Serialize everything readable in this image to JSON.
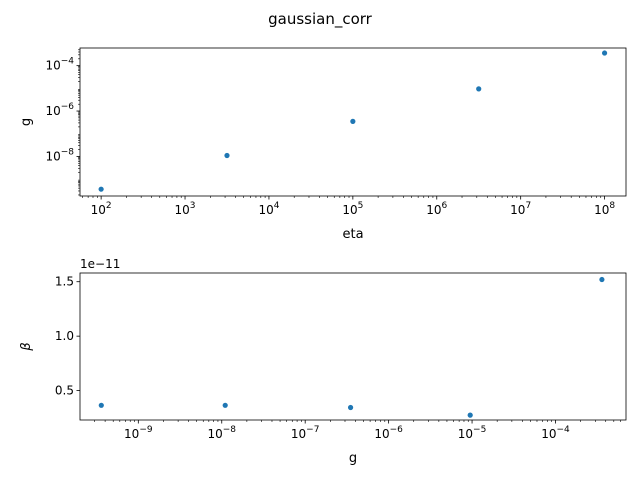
{
  "title": "gaussian_corr",
  "chart_data": [
    {
      "type": "scatter",
      "xlabel": "eta",
      "ylabel": "g",
      "xscale": "log",
      "yscale": "log",
      "xlim": [
        56,
        180000000
      ],
      "ylim": [
        1.8e-10,
        0.0006
      ],
      "xticks": [
        {
          "v": 100,
          "label": "10",
          "exp": "2"
        },
        {
          "v": 1000,
          "label": "10",
          "exp": "3"
        },
        {
          "v": 10000,
          "label": "10",
          "exp": "4"
        },
        {
          "v": 100000,
          "label": "10",
          "exp": "5"
        },
        {
          "v": 1000000,
          "label": "10",
          "exp": "6"
        },
        {
          "v": 10000000,
          "label": "10",
          "exp": "7"
        },
        {
          "v": 100000000,
          "label": "10",
          "exp": "8"
        }
      ],
      "yticks": [
        {
          "v": 1e-08,
          "label": "10",
          "exp": "−8"
        },
        {
          "v": 1e-06,
          "label": "10",
          "exp": "−6"
        },
        {
          "v": 0.0001,
          "label": "10",
          "exp": "−4"
        }
      ],
      "x": [
        100,
        3162,
        100000,
        3162000,
        100000000
      ],
      "y": [
        3.6e-10,
        1.1e-08,
        3.5e-07,
        9.5e-06,
        0.00036
      ],
      "color": "#1f77b4"
    },
    {
      "type": "scatter",
      "xlabel": "g",
      "ylabel": "β",
      "xscale": "log",
      "yscale": "linear",
      "offset_text": "1e−11",
      "xlim": [
        2e-10,
        0.0007
      ],
      "ylim": [
        2.3e-12,
        1.58e-11
      ],
      "xticks": [
        {
          "v": 1e-09,
          "label": "10",
          "exp": "−9"
        },
        {
          "v": 1e-08,
          "label": "10",
          "exp": "−8"
        },
        {
          "v": 1e-07,
          "label": "10",
          "exp": "−7"
        },
        {
          "v": 1e-06,
          "label": "10",
          "exp": "−6"
        },
        {
          "v": 1e-05,
          "label": "10",
          "exp": "−5"
        },
        {
          "v": 0.0001,
          "label": "10",
          "exp": "−4"
        }
      ],
      "yticks": [
        {
          "v": 5e-12,
          "label": "0.5"
        },
        {
          "v": 1e-11,
          "label": "1.0"
        },
        {
          "v": 1.5e-11,
          "label": "1.5"
        }
      ],
      "x": [
        3.6e-10,
        1.1e-08,
        3.5e-07,
        9.5e-06,
        0.00036
      ],
      "y": [
        3.65e-12,
        3.65e-12,
        3.45e-12,
        2.75e-12,
        1.52e-11
      ],
      "color": "#1f77b4"
    }
  ]
}
